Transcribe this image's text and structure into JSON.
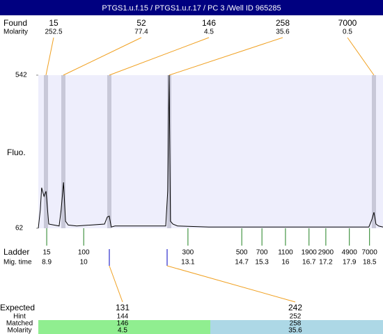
{
  "title": "PTGS1.u.f.15 / PTGS1.u.r.17 / PC 3 /Well ID 965285",
  "found": {
    "label": "Found",
    "molarity_label": "Molarity",
    "sizes": [
      15,
      52,
      146,
      258,
      7000
    ],
    "molarity": [
      252.5,
      77.4,
      4.5,
      35.6,
      0.5
    ]
  },
  "chart_data": {
    "type": "line",
    "y_label": "Fluo.",
    "xlim": [
      8.65,
      18.9
    ],
    "ylim": [
      62,
      542
    ],
    "yticks": [
      62,
      542
    ],
    "color": "#000000",
    "x": [
      8.65,
      8.71,
      8.75,
      8.82,
      8.88,
      8.96,
      9.27,
      9.33,
      9.4,
      9.46,
      9.54,
      9.79,
      10.62,
      10.7,
      10.76,
      10.82,
      10.93,
      12.44,
      12.5,
      12.54,
      12.58,
      12.65,
      12.79,
      13.72,
      18.48,
      18.57,
      18.63,
      18.69,
      18.77,
      18.9
    ],
    "values": [
      62,
      120,
      189,
      162,
      178,
      75,
      69,
      120,
      206,
      84,
      72,
      69,
      75,
      97,
      100,
      66,
      69,
      69,
      180,
      542,
      84,
      75,
      69,
      66,
      66,
      90,
      112,
      75,
      69,
      66
    ]
  },
  "ladder": {
    "label": "Ladder",
    "time_label": "Mig. time",
    "sizes": [
      15,
      100,
      300,
      500,
      700,
      1100,
      1900,
      2900,
      4900,
      7000
    ],
    "mig_times": [
      8.9,
      10,
      13.1,
      14.7,
      15.3,
      16,
      16.7,
      17.2,
      17.9,
      18.5
    ]
  },
  "expected": {
    "label": "Expected",
    "hint_label": "Hint",
    "matched_label": "Matched",
    "molarity_label": "Molarity",
    "sizes": [
      131,
      242
    ],
    "hint": [
      144,
      252
    ],
    "matched": [
      146,
      258
    ],
    "molarity": [
      4.5,
      35.6
    ]
  }
}
